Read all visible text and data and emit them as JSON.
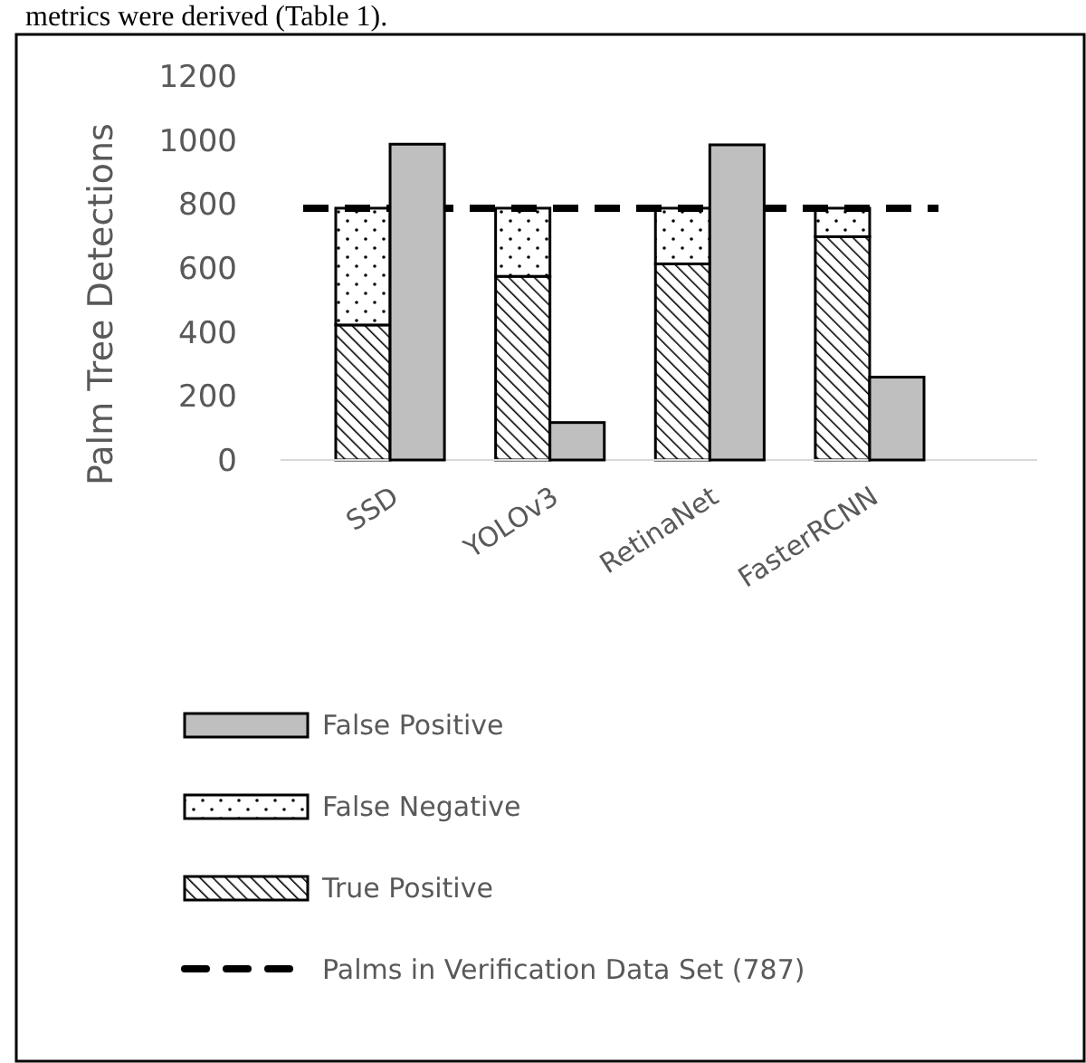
{
  "chart_data": [
    {
      "type": "bar",
      "ylabel": "Palm Tree Detections",
      "categories": [
        "SSD",
        "YOLOv3",
        "RetinaNet",
        "FasterRCNN"
      ],
      "series": [
        {
          "name": "True Positive",
          "color": "#000000",
          "values": [
            422,
            574,
            613,
            698
          ]
        },
        {
          "name": "False Negative",
          "color": "#000000",
          "values": [
            365,
            213,
            174,
            89
          ]
        }
      ],
      "stacked": true,
      "ylim": [
        0,
        1200
      ],
      "yticks": [
        0,
        200,
        400,
        600,
        800,
        1000,
        1200
      ],
      "ref_lines": [
        {
          "axis": "y",
          "value": 787,
          "label": "Palms in Verification Data Set (787)",
          "color": "#000000",
          "line_style": "dashed"
        }
      ],
      "legend": "bottom",
      "annotations": [
        "metrics were derived (Table 1)."
      ]
    },
    {
      "type": "bar",
      "categories": [
        null,
        null,
        null,
        null
      ],
      "series": [
        {
          "name": "False Positive",
          "color": "#bfbfbf",
          "values": [
            987,
            117,
            985,
            259
          ]
        }
      ],
      "ylim": [
        0,
        1200
      ],
      "legend": "bottom"
    }
  ]
}
